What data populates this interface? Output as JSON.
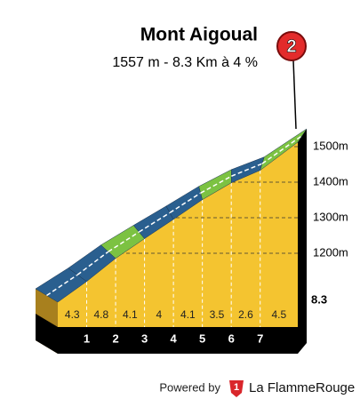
{
  "chart_data": {
    "type": "climb-profile",
    "title": "Mont Aigoual",
    "subtitle": "1557 m - 8.3 Km à 4 %",
    "category": "2",
    "values": [
      4.3,
      4.8,
      4.1,
      4.0,
      4.1,
      3.5,
      2.6,
      4.5
    ],
    "segment_colors": [
      "#2a5f8f",
      "#2a5f8f",
      "#7cc242",
      "#2a5f8f",
      "#2a5f8f",
      "#7cc242",
      "#2a5f8f",
      "#7cc242"
    ],
    "xlim": [
      0,
      8.3
    ],
    "xticks": [
      1,
      2,
      3,
      4,
      5,
      6,
      7
    ],
    "ylim": [
      1100,
      1600
    ],
    "yticks": [
      {
        "value": 1200,
        "label": "1200m"
      },
      {
        "value": 1300,
        "label": "1300m"
      },
      {
        "value": 1400,
        "label": "1400m"
      },
      {
        "value": 1500,
        "label": "1500m"
      }
    ],
    "color": "#f4c430"
  },
  "footer": {
    "text": "Powered by",
    "logo": "1",
    "brand": "La FlammeRouge"
  }
}
